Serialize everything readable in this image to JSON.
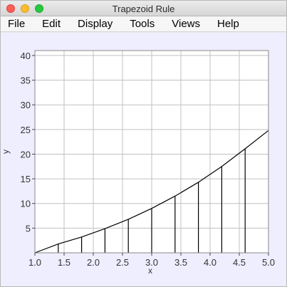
{
  "window": {
    "title": "Trapezoid Rule"
  },
  "menu": [
    "File",
    "Edit",
    "Display",
    "Tools",
    "Views",
    "Help"
  ],
  "icons": {
    "close": "close-traffic-light-icon",
    "minimize": "minimize-traffic-light-icon",
    "maximize": "maximize-traffic-light-icon"
  },
  "colors": {
    "plot_background": "#ffffff",
    "panel_background": "#eeeeff",
    "grid": "#c0c0c0",
    "curve": "#000000"
  },
  "chart_data": {
    "type": "line",
    "xlabel": "x",
    "ylabel": "y",
    "xlim": [
      1.0,
      5.0
    ],
    "ylim": [
      0,
      41
    ],
    "xticks": [
      "1.0",
      "1.5",
      "2.0",
      "2.5",
      "3.0",
      "3.5",
      "4.0",
      "4.5",
      "5.0"
    ],
    "yticks": [
      "5",
      "10",
      "15",
      "20",
      "25",
      "30",
      "35",
      "40"
    ],
    "grid": true,
    "series": [
      {
        "x": [
          1.0,
          1.4,
          1.8,
          2.2,
          2.6,
          3.0,
          3.4,
          3.8,
          4.2,
          4.6,
          5.0
        ],
        "values": [
          0.0,
          1.8,
          3.2,
          4.9,
          6.8,
          9.0,
          11.5,
          14.3,
          17.5,
          21.1,
          24.8
        ]
      }
    ],
    "trapezoid_edges_x": [
      1.4,
      1.8,
      2.2,
      2.6,
      3.0,
      3.4,
      3.8,
      4.2,
      4.6
    ]
  }
}
